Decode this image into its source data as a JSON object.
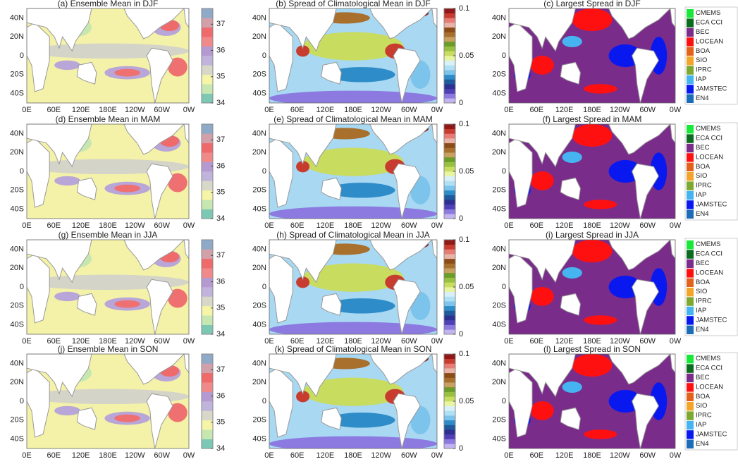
{
  "panels": [
    {
      "title": "(a) Ensemble Mean in DJF",
      "kind": "mean"
    },
    {
      "title": "(b)  Spread of Climatological Mean in DJF",
      "kind": "spread"
    },
    {
      "title": "(c)  Largest Spread in DJF",
      "kind": "largest"
    },
    {
      "title": "(d) Ensemble Mean in MAM",
      "kind": "mean"
    },
    {
      "title": "(e)  Spread of Climatological Mean in MAM",
      "kind": "spread"
    },
    {
      "title": "(f)  Largest Spread in MAM",
      "kind": "largest"
    },
    {
      "title": "(g) Ensemble Mean in JJA",
      "kind": "mean"
    },
    {
      "title": "(h)  Spread of Climatological Mean in JJA",
      "kind": "spread"
    },
    {
      "title": "(i)  Largest Spread in JJA",
      "kind": "largest"
    },
    {
      "title": "(j) Ensemble Mean in SON",
      "kind": "mean"
    },
    {
      "title": "(k)  Spread of Climatological Mean in SON",
      "kind": "spread"
    },
    {
      "title": "(l)  Largest Spread in SON",
      "kind": "largest"
    }
  ],
  "lon_labels": [
    "0E",
    "60E",
    "120E",
    "180E",
    "120W",
    "60W",
    "0W"
  ],
  "lat_labels": [
    "40N",
    "20N",
    "0",
    "20S",
    "40S"
  ],
  "mean_colorbar": {
    "range": [
      34,
      37.6
    ],
    "ticks": [
      34,
      35,
      36,
      37
    ],
    "colors": [
      "#7cc8b4",
      "#c6e7b0",
      "#f6f4a6",
      "#d8d8c8",
      "#c0b4dc",
      "#b49ad0",
      "#f08a8a",
      "#ef6b6b",
      "#d2a0a8",
      "#8eaac8"
    ]
  },
  "spread_colorbar": {
    "range": [
      0,
      0.1
    ],
    "ticks": [
      0,
      0.05,
      0.1
    ],
    "colors": [
      "#c2b4f0",
      "#8c7ae0",
      "#5040b8",
      "#2c3090",
      "#1e5a9c",
      "#2e8cc8",
      "#7cc4ec",
      "#b0e0f4",
      "#d8f0f8",
      "#e8f4a0",
      "#c8dc60",
      "#98c040",
      "#6c9c28",
      "#c8a060",
      "#a8702c",
      "#8c4c18",
      "#e8b4a8",
      "#e87c74",
      "#c83c30",
      "#901818"
    ]
  },
  "legend": {
    "items": [
      {
        "name": "CMEMS",
        "color": "#19e83a"
      },
      {
        "name": "ECA CCI",
        "color": "#0b6b1e"
      },
      {
        "name": "BEC",
        "color": "#7a2c8a"
      },
      {
        "name": "LOCEAN",
        "color": "#ff1010"
      },
      {
        "name": "BOA",
        "color": "#e2621c"
      },
      {
        "name": "SIO",
        "color": "#f2a52a"
      },
      {
        "name": "IPRC",
        "color": "#7da832"
      },
      {
        "name": "IAP",
        "color": "#46b4f0"
      },
      {
        "name": "JAMSTEC",
        "color": "#0a18f0"
      },
      {
        "name": "EN4",
        "color": "#1c6cb8"
      }
    ]
  }
}
